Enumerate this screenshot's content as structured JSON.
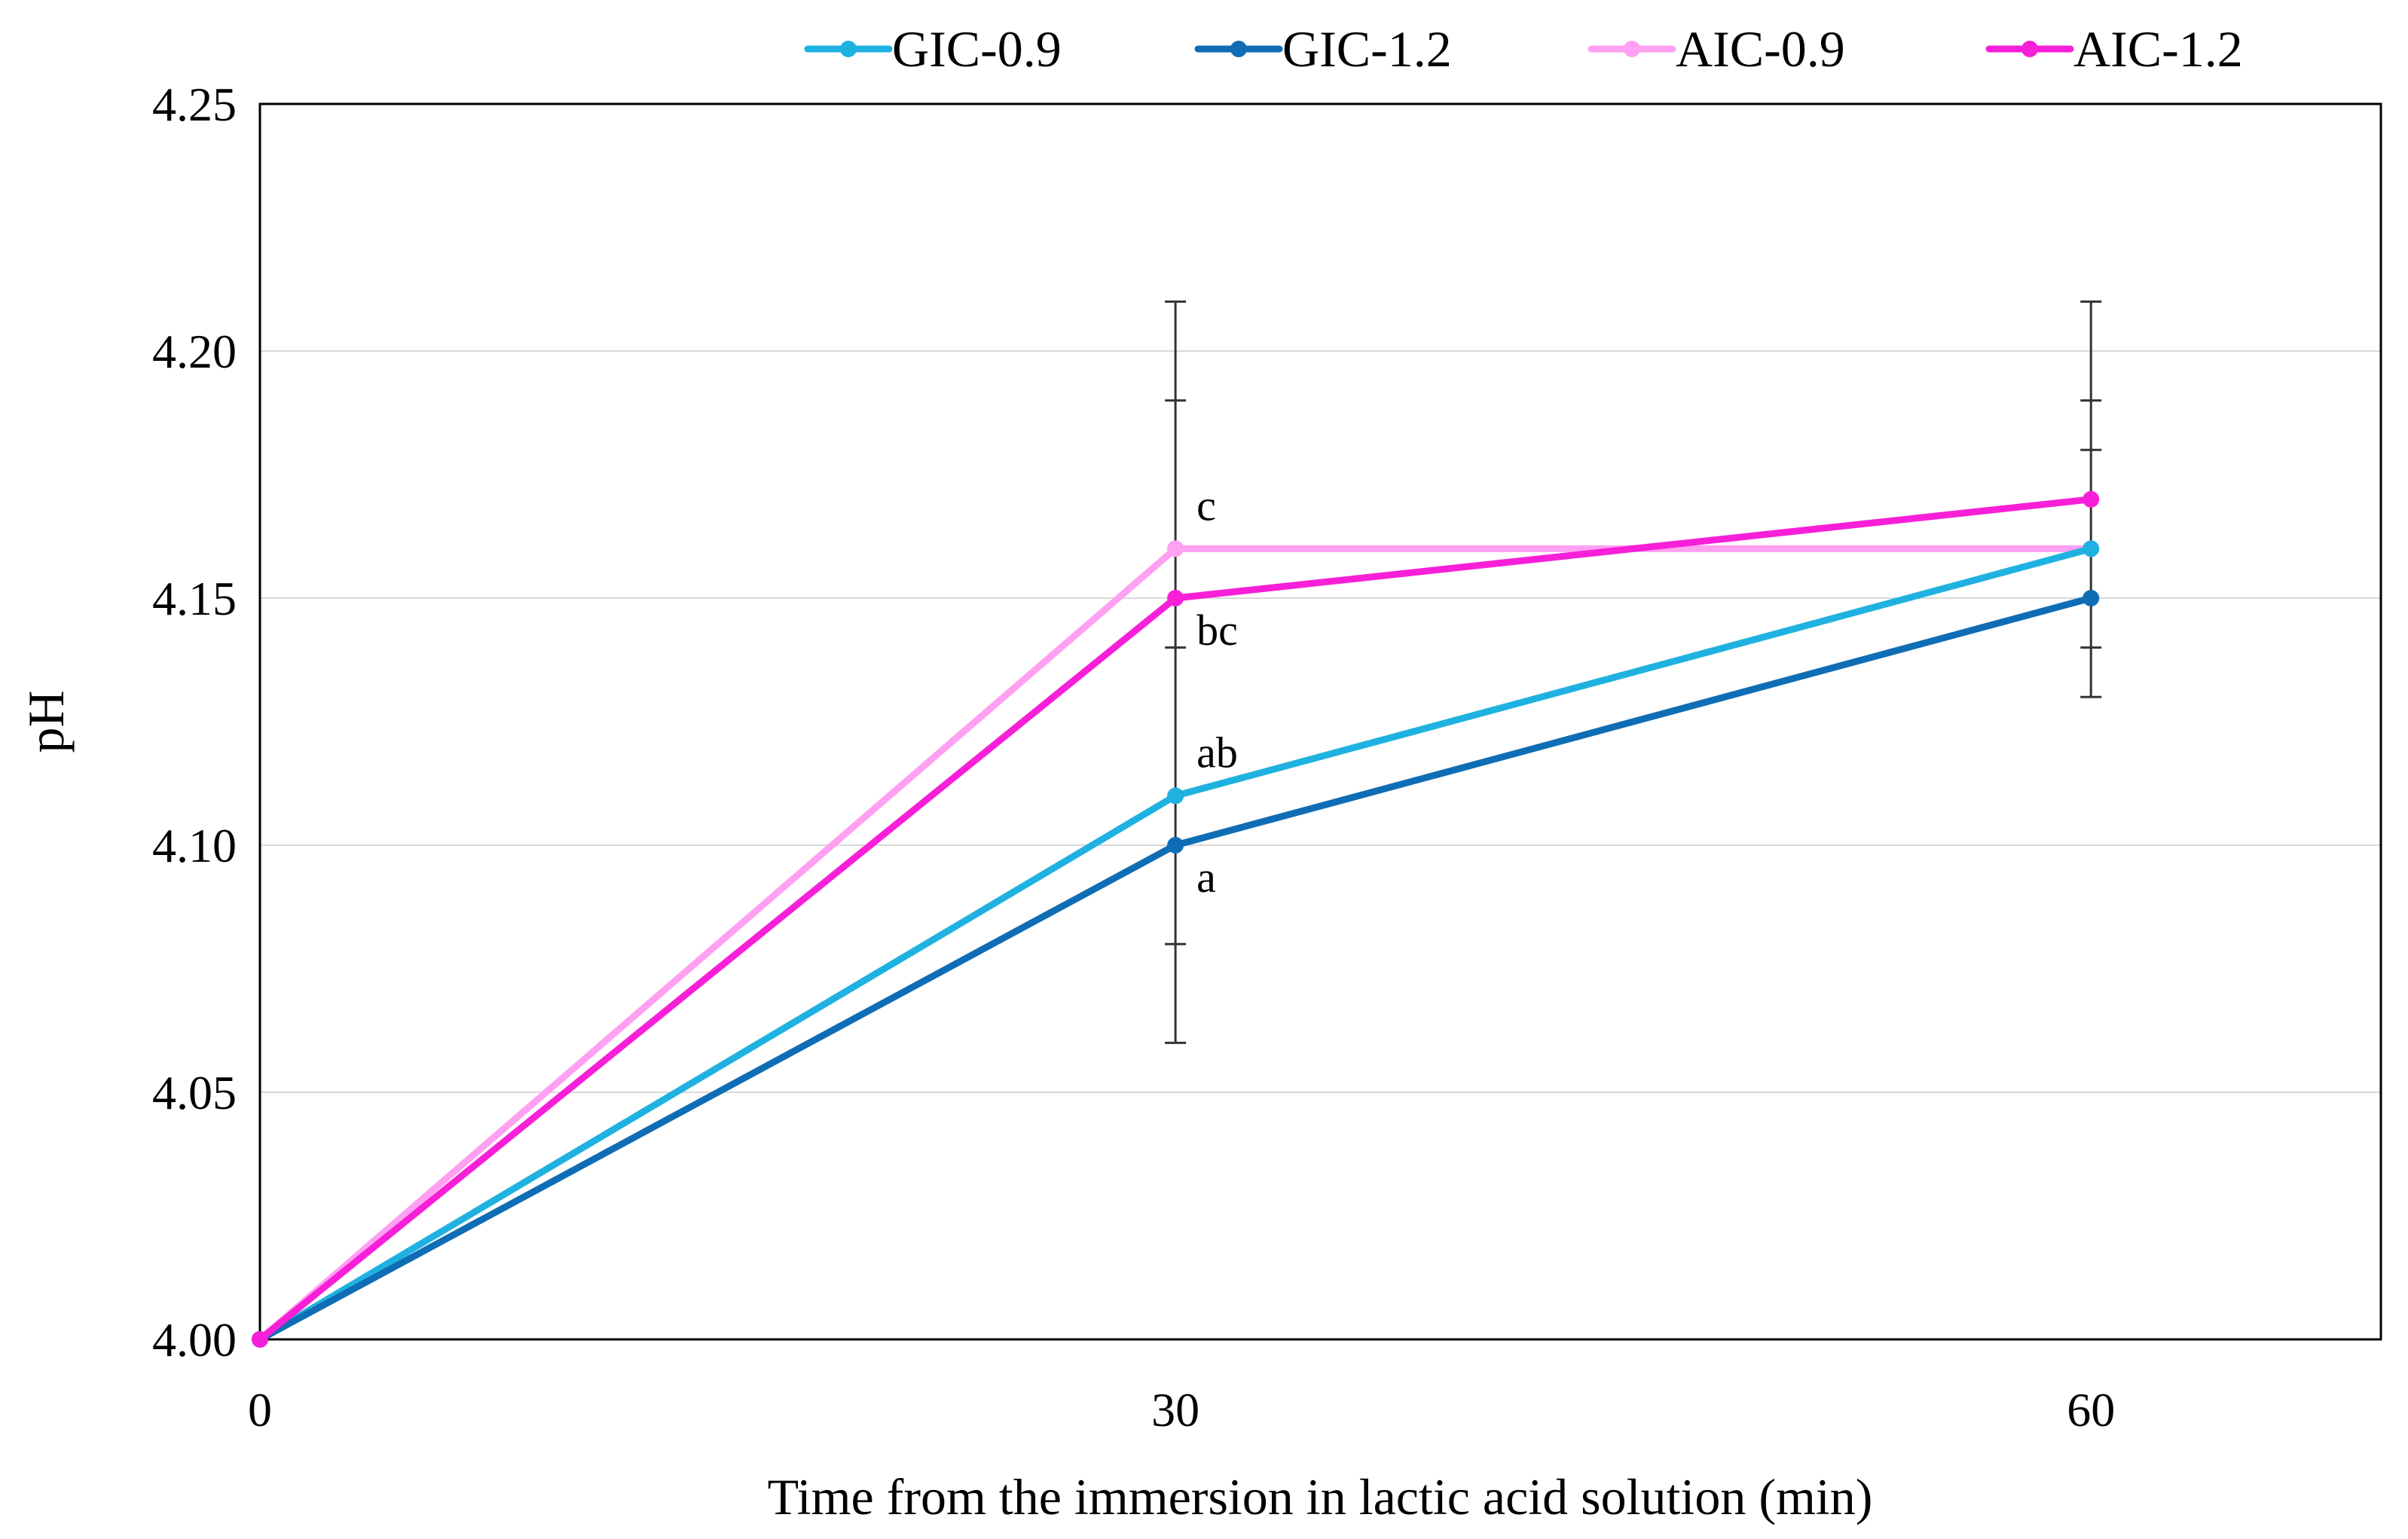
{
  "chart_data": {
    "type": "line",
    "title": "",
    "xlabel": "Time from the immersion in lactic acid solution (min)",
    "ylabel": "pH",
    "x": [
      0,
      30,
      60
    ],
    "x_tick_labels": [
      "0",
      "30",
      "60"
    ],
    "xlim": [
      0,
      69.5
    ],
    "ylim": [
      4.0,
      4.25
    ],
    "y_ticks": [
      4.0,
      4.05,
      4.1,
      4.15,
      4.2,
      4.25
    ],
    "y_tick_labels": [
      "4.00",
      "4.05",
      "4.10",
      "4.15",
      "4.20",
      "4.25"
    ],
    "grid": "horizontal",
    "legend_position": "top",
    "series": [
      {
        "name": "GIC-0.9",
        "color": "#1FB2E0",
        "values": [
          4.0,
          4.11,
          4.16
        ]
      },
      {
        "name": "GIC-1.2",
        "color": "#0F6DB5",
        "values": [
          4.0,
          4.1,
          4.15
        ]
      },
      {
        "name": "AIC-0.9",
        "color": "#FFA0F2",
        "values": [
          4.0,
          4.16,
          4.16
        ]
      },
      {
        "name": "AIC-1.2",
        "color": "#F71FD8",
        "values": [
          4.0,
          4.15,
          4.17
        ]
      }
    ],
    "error_bars": [
      {
        "x": 30,
        "low": 4.06,
        "high": 4.21,
        "caps": [
          4.06,
          4.08,
          4.14,
          4.19,
          4.21
        ]
      },
      {
        "x": 60,
        "low": 4.13,
        "high": 4.21,
        "caps": [
          4.13,
          4.14,
          4.18,
          4.19,
          4.21
        ]
      }
    ],
    "annotations": [
      {
        "text": "c",
        "x": 30,
        "y": 4.16,
        "placement": "above"
      },
      {
        "text": "bc",
        "x": 30,
        "y": 4.15,
        "placement": "below"
      },
      {
        "text": "ab",
        "x": 30,
        "y": 4.11,
        "placement": "above"
      },
      {
        "text": "a",
        "x": 30,
        "y": 4.1,
        "placement": "below"
      }
    ]
  }
}
